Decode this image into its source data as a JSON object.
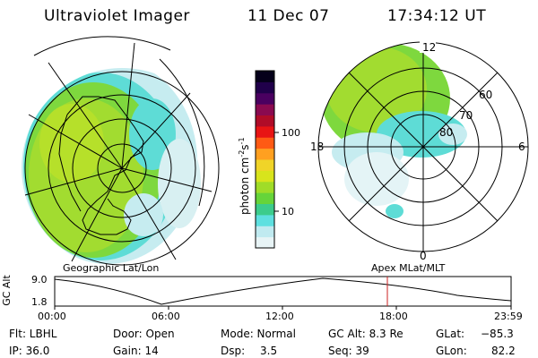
{
  "header": {
    "instrument": "Ultraviolet Imager",
    "date": "11 Dec 07",
    "time": "17:34:12 UT"
  },
  "colorbar": {
    "unit": "photon cm",
    "unit_sup1": "-2",
    "unit_mid": "s",
    "unit_sup2": "-1",
    "ticks": [
      "100",
      "10"
    ],
    "colors": [
      "#e8f4f6",
      "#c0eaf0",
      "#5ee0e0",
      "#3ccc8c",
      "#66d43a",
      "#a0dc28",
      "#d8e41c",
      "#f0d428",
      "#ffa020",
      "#ff5a14",
      "#e81414",
      "#b00c28",
      "#8a0a50",
      "#4a0060",
      "#20004a",
      "#05001a"
    ]
  },
  "left_panel": {
    "label": "Geographic Lat/Lon"
  },
  "right_panel": {
    "label": "Apex  MLat/MLT",
    "mlt_labels": {
      "top": "12",
      "left": "18",
      "right": "6",
      "bottom": "0"
    },
    "lat_labels": [
      "60",
      "70",
      "80"
    ]
  },
  "timeseries": {
    "ylabel": "GC Alt",
    "ytick_top": "9.0",
    "ytick_bottom": "1.8",
    "xticks": [
      "00:00",
      "06:00",
      "12:00",
      "18:00",
      "23:59"
    ],
    "marker_color": "#cc2222"
  },
  "status": {
    "flt": "Flt: LBHL",
    "ip": "IP: 36.0",
    "door": "Door: Open",
    "gain": "Gain: 14",
    "mode": "Mode: Normal",
    "dsp_label": "Dsp:",
    "dsp_value": "3.5",
    "gc_alt": "GC Alt: 8.3 Re",
    "seq": "Seq: 39",
    "glat_label": "GLat:",
    "glat_value": "−85.3",
    "glon_label": "GLon:",
    "glon_value": "82.2"
  }
}
